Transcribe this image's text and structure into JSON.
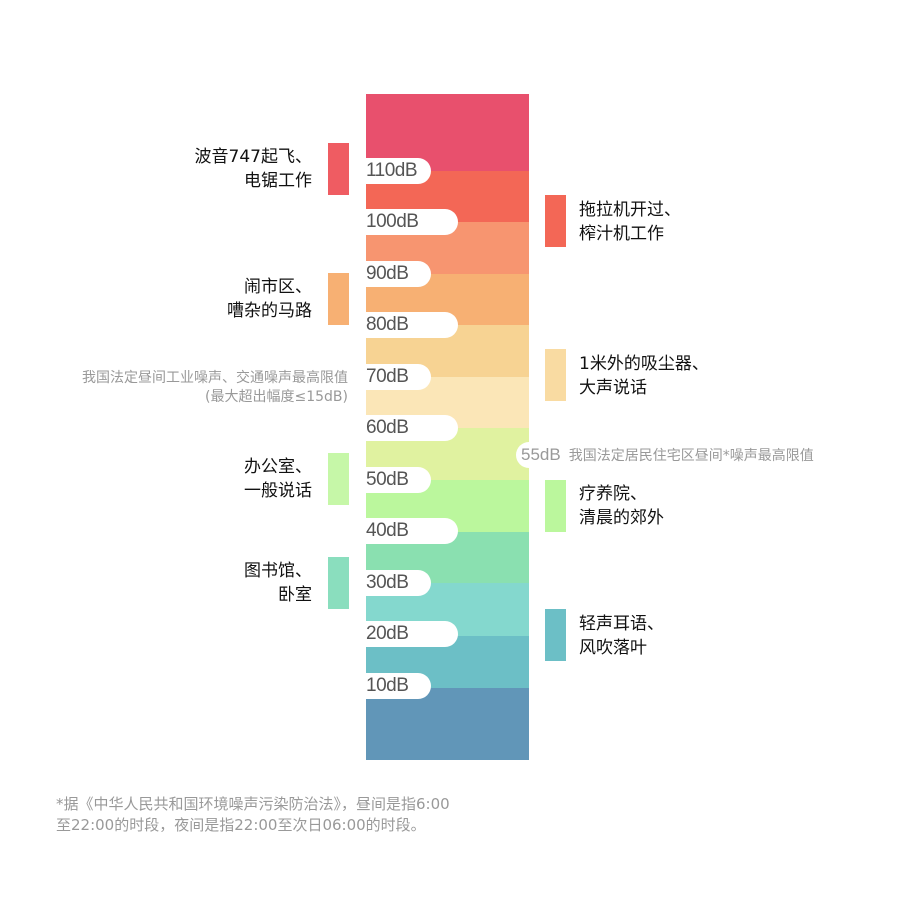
{
  "scale": {
    "bands": [
      {
        "color": "#E8506D"
      },
      {
        "color": "#F36756"
      },
      {
        "color": "#F79570"
      },
      {
        "color": "#F7B073"
      },
      {
        "color": "#F7D393"
      },
      {
        "color": "#FBE6B7"
      },
      {
        "color": "#E0F2A0"
      },
      {
        "color": "#BBF79D"
      },
      {
        "color": "#8AE0B0"
      },
      {
        "color": "#84D8CE"
      },
      {
        "color": "#6CBFC6"
      },
      {
        "color": "#6196B8"
      }
    ],
    "ticks": [
      "110dB",
      "100dB",
      "90dB",
      "80dB",
      "70dB",
      "60dB",
      "50dB",
      "40dB",
      "30dB",
      "20dB",
      "10dB"
    ]
  },
  "examples_left": [
    {
      "line1": "波音747起飞、",
      "line2": "电锯工作",
      "color": "#EF5C62"
    },
    {
      "line1": "闹市区、",
      "line2": "嘈杂的马路",
      "color": "#F7B073"
    },
    {
      "line1": "办公室、",
      "line2": "一般说话",
      "color": "#C6F7A8"
    },
    {
      "line1": "图书馆、",
      "line2": "卧室",
      "color": "#8ADEBE"
    }
  ],
  "examples_right": [
    {
      "line1": "拖拉机开过、",
      "line2": "榨汁机工作",
      "color": "#F36756"
    },
    {
      "line1": "1米外的吸尘器、",
      "line2": "大声说话",
      "color": "#F9DBA2"
    },
    {
      "line1": "疗养院、",
      "line2": "清晨的郊外",
      "color": "#BBF79D"
    },
    {
      "line1": "轻声耳语、",
      "line2": "风吹落叶",
      "color": "#6CBFC6"
    }
  ],
  "daytime_limit_note": {
    "line1": "我国法定昼间工业噪声、交通噪声最高限值",
    "line2": "(最大超出幅度≤15dB)"
  },
  "residential_marker": {
    "value": "55dB",
    "text": "我国法定居民住宅区昼间*噪声最高限值"
  },
  "footnote": {
    "line1": "*据《中华人民共和国环境噪声污染防治法》，昼间是指6:00",
    "line2": "至22:00的时段，夜间是指22:00至次日06:00的时段。"
  }
}
